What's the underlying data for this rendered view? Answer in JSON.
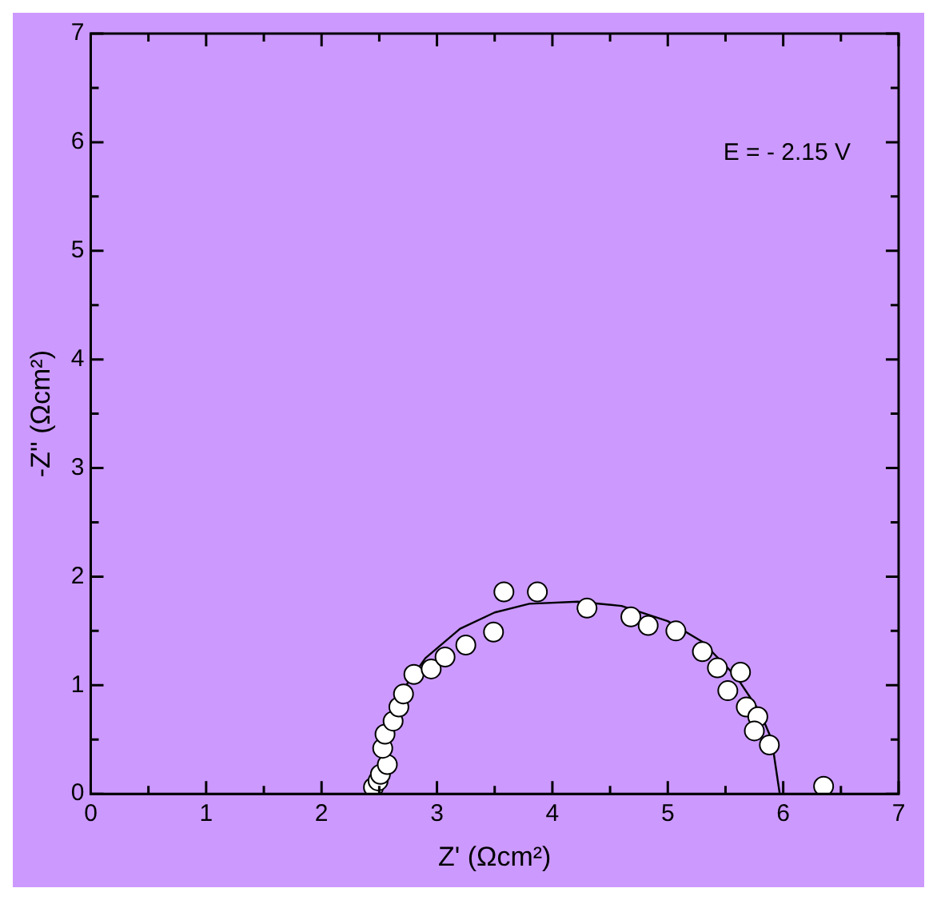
{
  "chart_data": {
    "type": "scatter",
    "xlabel": "Z' (Ωcm²)",
    "ylabel": "-Z'' (Ωcm²)",
    "annotations": [
      "E = - 2.15 V"
    ],
    "xlim": [
      0,
      7
    ],
    "ylim": [
      0,
      7
    ],
    "xticks": [
      0,
      {
        "value": 0.5,
        "label": null
      },
      1,
      {
        "value": 1.5,
        "label": null
      },
      2,
      {
        "value": 2.5,
        "label": null
      },
      3,
      {
        "value": 3.5,
        "label": null
      },
      4,
      {
        "value": 4.5,
        "label": null
      },
      5,
      {
        "value": 5.5,
        "label": null
      },
      6,
      {
        "value": 6.5,
        "label": null
      },
      7
    ],
    "yticks": [
      0,
      {
        "value": 0.5,
        "label": null
      },
      1,
      {
        "value": 1.5,
        "label": null
      },
      2,
      {
        "value": 2.5,
        "label": null
      },
      3,
      {
        "value": 3.5,
        "label": null
      },
      4,
      {
        "value": 4.5,
        "label": null
      },
      5,
      {
        "value": 5.5,
        "label": null
      },
      6,
      {
        "value": 6.5,
        "label": null
      },
      7
    ],
    "grid": false,
    "legend": false,
    "series": [
      {
        "marker": "circle",
        "color": "#ffffff",
        "x": [
          2.45,
          2.49,
          2.51,
          2.57,
          2.53,
          2.55,
          2.62,
          2.67,
          2.71,
          2.8,
          2.95,
          3.07,
          3.25,
          3.49,
          3.58,
          3.87,
          4.3,
          4.68,
          4.83,
          5.07,
          5.3,
          5.43,
          5.52,
          5.63,
          5.68,
          5.78,
          5.75,
          5.88,
          6.35
        ],
        "values": [
          0.06,
          0.12,
          0.18,
          0.27,
          0.42,
          0.55,
          0.67,
          0.8,
          0.92,
          1.1,
          1.15,
          1.26,
          1.37,
          1.49,
          1.86,
          1.86,
          1.71,
          1.63,
          1.55,
          1.5,
          1.31,
          1.16,
          0.95,
          1.12,
          0.8,
          0.71,
          0.58,
          0.45,
          0.07
        ]
      },
      {
        "type": "line",
        "marker": "none",
        "line_style": "solid",
        "color": "#000000",
        "x": [
          2.47,
          2.55,
          2.7,
          2.9,
          3.2,
          3.5,
          3.8,
          4.22,
          4.6,
          5.0,
          5.3,
          5.6,
          5.8,
          5.9,
          5.97
        ],
        "values": [
          0,
          0.52,
          0.95,
          1.25,
          1.52,
          1.67,
          1.75,
          1.77,
          1.73,
          1.59,
          1.4,
          1.07,
          0.75,
          0.5,
          0
        ]
      }
    ]
  }
}
